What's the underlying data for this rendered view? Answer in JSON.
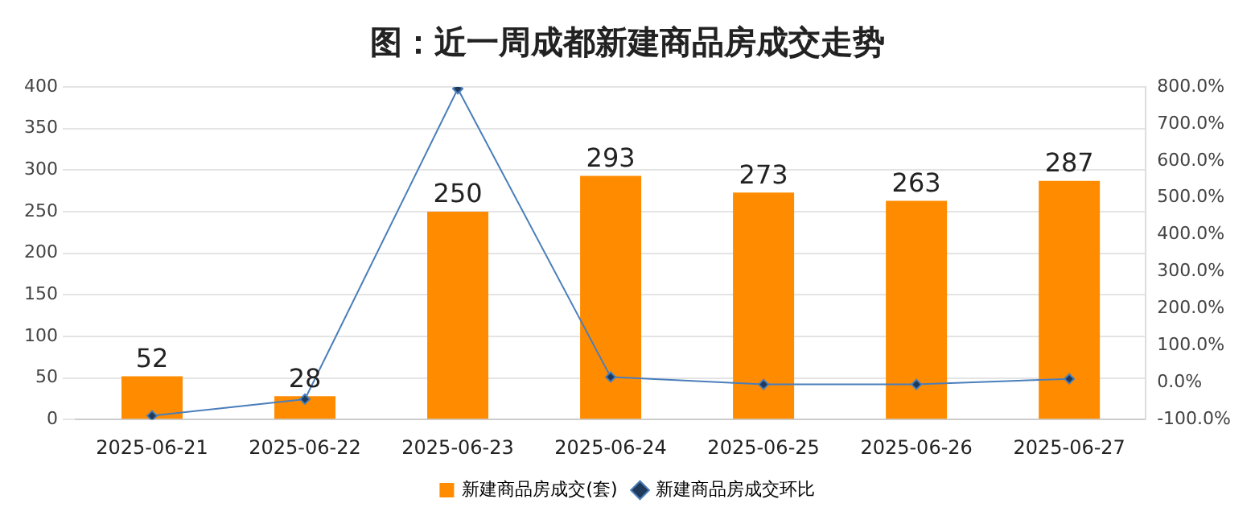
{
  "chart_data": {
    "type": "bar",
    "title": "图：近一周成都新建商品房成交走势",
    "categories": [
      "2025-06-21",
      "2025-06-22",
      "2025-06-23",
      "2025-06-24",
      "2025-06-25",
      "2025-06-26",
      "2025-06-27"
    ],
    "series": [
      {
        "name": "新建商品房成交(套)",
        "color": "#ff8c00",
        "values": [
          52,
          28,
          250,
          293,
          273,
          263,
          287
        ],
        "value_labels": [
          "52",
          "28",
          "250",
          "293",
          "273",
          "263",
          "287"
        ]
      },
      {
        "name": "新建商品房成交环比",
        "type": "line",
        "axis": "y2",
        "color": "#4a7ebb",
        "marker": "diamond",
        "values": [
          -90,
          -45,
          795,
          15,
          -5,
          -5,
          10
        ]
      }
    ],
    "ylim": [
      0,
      400
    ],
    "yticks": [
      0,
      50,
      100,
      150,
      200,
      250,
      300,
      350,
      400
    ],
    "y2lim": [
      -100,
      800
    ],
    "y2ticks": [
      {
        "value": -100,
        "label": "-100.0%"
      },
      {
        "value": 0,
        "label": "0.0%"
      },
      {
        "value": 100,
        "label": "100.0%"
      },
      {
        "value": 200,
        "label": "200.0%"
      },
      {
        "value": 300,
        "label": "300.0%"
      },
      {
        "value": 400,
        "label": "400.0%"
      },
      {
        "value": 500,
        "label": "500.0%"
      },
      {
        "value": 600,
        "label": "600.0%"
      },
      {
        "value": 700,
        "label": "700.0%"
      },
      {
        "value": 800,
        "label": "800.0%"
      }
    ],
    "grid": "y",
    "legend": "bottom"
  }
}
